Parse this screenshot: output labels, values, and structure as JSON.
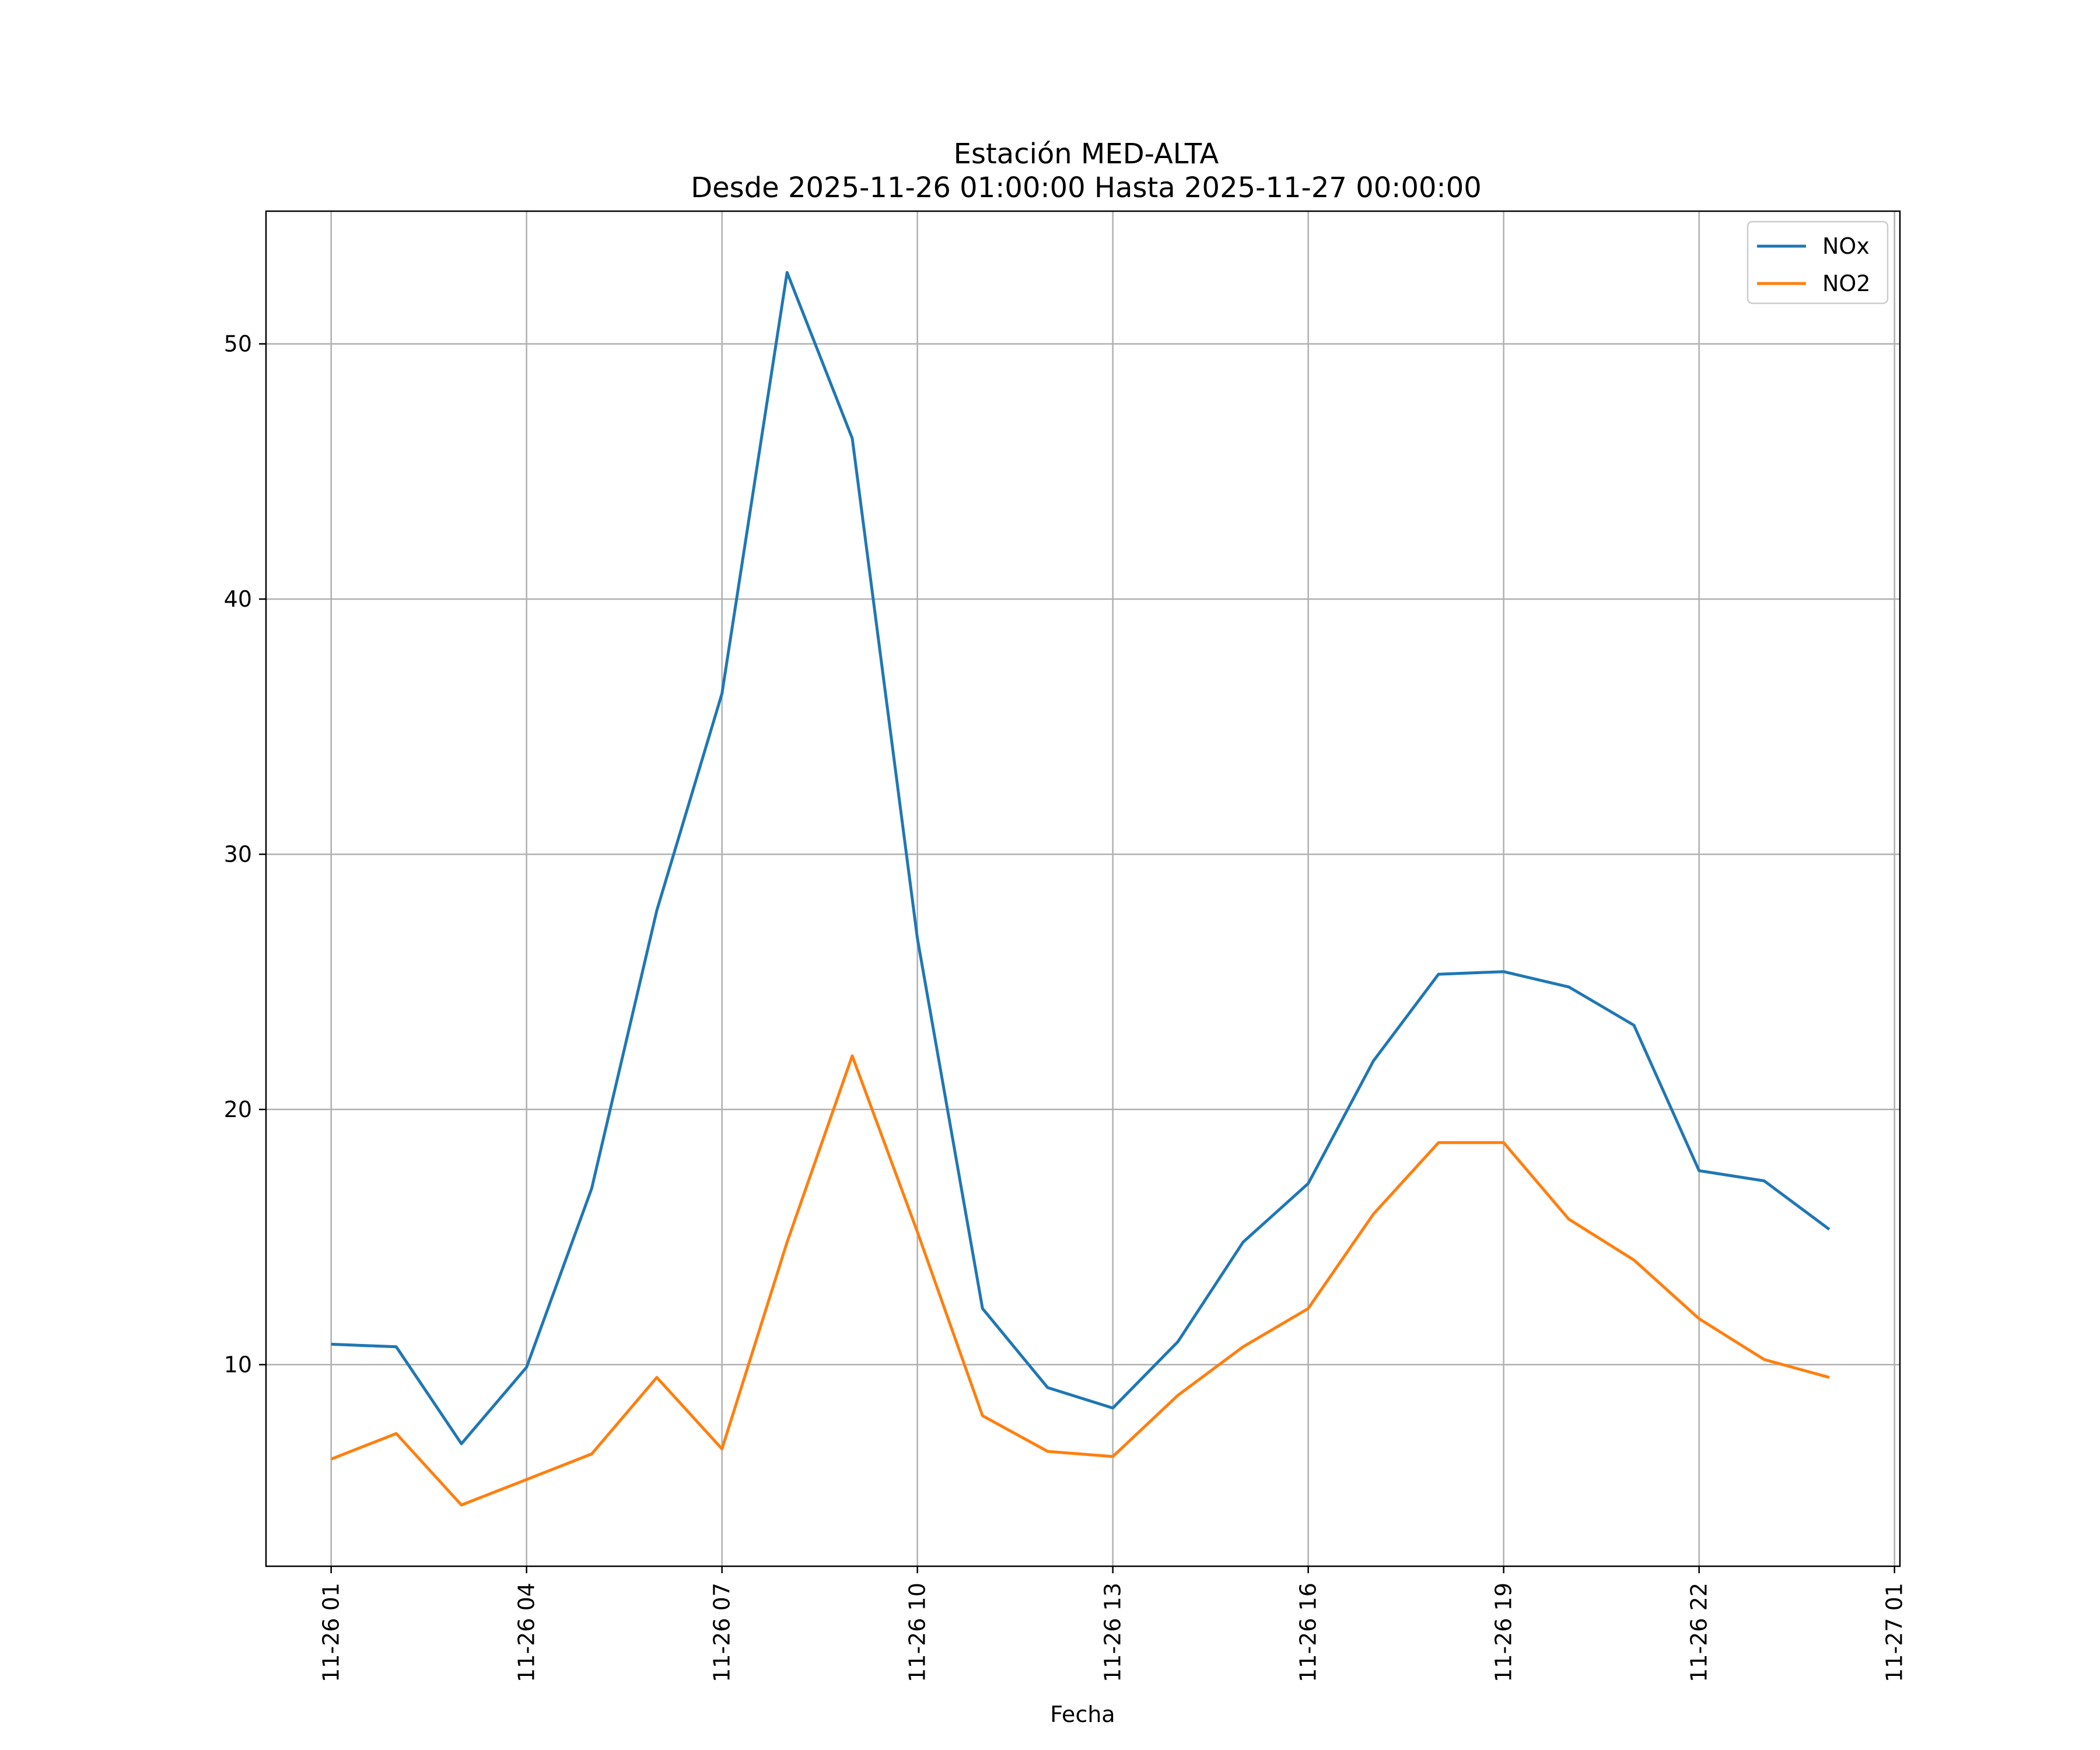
{
  "chart_data": {
    "type": "line",
    "title": "Estación MED-ALTA",
    "subtitle": "Desde 2025-11-26 01:00:00 Hasta 2025-11-27 00:00:00",
    "xlabel": "Fecha",
    "ylabel": "",
    "x": [
      "2025-11-26 01:00",
      "2025-11-26 02:00",
      "2025-11-26 03:00",
      "2025-11-26 04:00",
      "2025-11-26 05:00",
      "2025-11-26 06:00",
      "2025-11-26 07:00",
      "2025-11-26 08:00",
      "2025-11-26 09:00",
      "2025-11-26 10:00",
      "2025-11-26 11:00",
      "2025-11-26 12:00",
      "2025-11-26 13:00",
      "2025-11-26 14:00",
      "2025-11-26 15:00",
      "2025-11-26 16:00",
      "2025-11-26 17:00",
      "2025-11-26 18:00",
      "2025-11-26 19:00",
      "2025-11-26 20:00",
      "2025-11-26 21:00",
      "2025-11-26 22:00",
      "2025-11-26 23:00",
      "2025-11-27 00:00"
    ],
    "x_ticks": [
      "11-26 01",
      "11-26 04",
      "11-26 07",
      "11-26 10",
      "11-26 13",
      "11-26 16",
      "11-26 19",
      "11-26 22",
      "11-27 01"
    ],
    "xlim": [
      "2025-11-26 00:00",
      "2025-11-27 01:05"
    ],
    "y_ticks": [
      10,
      20,
      30,
      40,
      50
    ],
    "ylim": [
      2.1,
      55.2
    ],
    "grid": true,
    "legend_position": "top-right",
    "series": [
      {
        "name": "NOx",
        "color": "#1f77b4",
        "values": [
          10.8,
          10.7,
          6.9,
          9.9,
          16.9,
          27.8,
          36.3,
          52.8,
          46.3,
          26.7,
          12.2,
          9.1,
          8.3,
          10.9,
          14.8,
          17.1,
          21.9,
          25.3,
          25.4,
          24.8,
          23.3,
          17.6,
          17.2,
          15.3
        ]
      },
      {
        "name": "NO2",
        "color": "#ff7f0e",
        "values": [
          6.3,
          7.3,
          4.5,
          5.5,
          6.5,
          9.5,
          6.7,
          14.8,
          22.1,
          15.2,
          8.0,
          6.6,
          6.4,
          8.8,
          10.7,
          12.2,
          15.9,
          18.7,
          18.7,
          15.7,
          14.1,
          11.8,
          10.2,
          9.5
        ]
      }
    ]
  }
}
